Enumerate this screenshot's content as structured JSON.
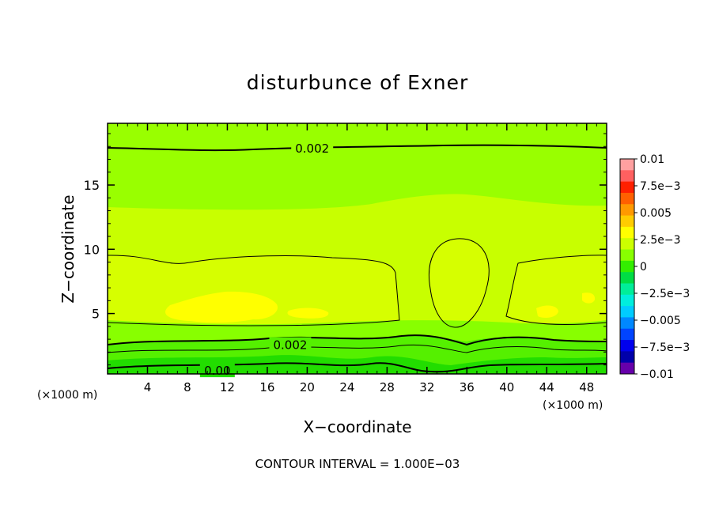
{
  "chart_data": {
    "type": "heatmap",
    "title": "disturbunce of Exner",
    "xlabel": "X−coordinate",
    "ylabel": "Z−coordinate",
    "x_unit_left": "(×1000 m)",
    "x_unit_right": "(×1000 m)",
    "footer": "CONTOUR INTERVAL = 1.000E−03",
    "xlim": [
      0,
      50
    ],
    "ylim": [
      0.3,
      19.8
    ],
    "x_ticks": [
      4,
      8,
      12,
      16,
      20,
      24,
      28,
      32,
      36,
      40,
      44,
      48
    ],
    "x_tick_labels": [
      "4",
      "8",
      "12",
      "16",
      "20",
      "24",
      "28",
      "32",
      "36",
      "40",
      "44",
      "48"
    ],
    "y_ticks": [
      5,
      10,
      15
    ],
    "y_tick_labels": [
      "5",
      "10",
      "15"
    ],
    "contour_labels": [
      {
        "text": "0.002",
        "x": 20.5,
        "y": 17.9
      },
      {
        "text": "0.002",
        "x": 18.3,
        "y": 2.6
      },
      {
        "text": "0.00",
        "x": 11.0,
        "y": 0.6
      }
    ],
    "colorbar": {
      "labels": [
        "0.01",
        "7.5e−3",
        "0.005",
        "2.5e−3",
        "0",
        "−2.5e−3",
        "−0.005",
        "−7.5e−3",
        "−0.01"
      ],
      "colors": [
        "#ffa0a0",
        "#ff6060",
        "#ff2000",
        "#ff6000",
        "#ff9900",
        "#ffcc00",
        "#ffff00",
        "#ccff00",
        "#88ff00",
        "#33ee00",
        "#00dd44",
        "#00ee99",
        "#00eedd",
        "#00ccff",
        "#0088ff",
        "#0044ff",
        "#0000ee",
        "#0000aa",
        "#6600aa"
      ]
    }
  }
}
